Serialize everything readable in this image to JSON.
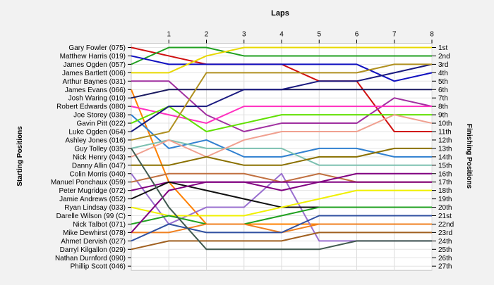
{
  "chart_data": {
    "type": "line",
    "title": "Laps",
    "ylabel_left": "Starting Positions",
    "ylabel_right": "Finishing Positions",
    "x": [
      0,
      1,
      2,
      3,
      4,
      5,
      6,
      7,
      8
    ],
    "x_tick_labels": [
      "1",
      "2",
      "3",
      "4",
      "5",
      "6",
      "7",
      "8"
    ],
    "y_range": [
      1,
      27
    ],
    "grid": true,
    "starting_labels": [
      "Gary Fowler (075)",
      "Matthew Harris (019)",
      "James Ogden (057)",
      "James Bartlett (006)",
      "Arthur Baynes (031)",
      "James Evans (066)",
      "Josh Waring (010)",
      "Robert Edwards (080)",
      "Joe Storey (038)",
      "Gavin Pitt (022)",
      "Luke Ogden (064)",
      "Ashley Jones (016)",
      "Guy Tolley (035)",
      "Nick Henry (043)",
      "Danny Allin (047)",
      "Colin Morris (040)",
      "Manuel Ponchaux (059)",
      "Peter Mugridge (072)",
      "Jamie Andrews (052)",
      "Ryan Lindsay (033)",
      "Darelle Wilson (99 (C)",
      "Nick Talbot (071)",
      "Mike Dewhirst (078)",
      "Ahmet Dervish (027)",
      "Darryl Kilgallon (029)",
      "Nathan Durnford (090)",
      "Phillip Scott (046)"
    ],
    "finishing_labels": [
      "1st",
      "2nd",
      "3rd",
      "4th",
      "5th",
      "6th",
      "7th",
      "8th",
      "9th",
      "10th",
      "11th",
      "12th",
      "13th",
      "14th",
      "15th",
      "16th",
      "17th",
      "18th",
      "19th",
      "20th",
      "21st",
      "22nd",
      "23rd",
      "24th",
      "25th",
      "26th",
      "27th"
    ],
    "series": [
      {
        "values": [
          1,
          2,
          3,
          3,
          3,
          5,
          5,
          11,
          11
        ],
        "color": "#d01010"
      },
      {
        "values": [
          3,
          1,
          1,
          2,
          2,
          2,
          2,
          2,
          2
        ],
        "color": "#20a020"
      },
      {
        "values": [
          2,
          3,
          3,
          3,
          3,
          3,
          3,
          5,
          4
        ],
        "color": "#1010c0"
      },
      {
        "values": [
          4,
          4,
          2,
          1,
          1,
          1,
          1,
          1,
          1
        ],
        "color": "#e8d800"
      },
      {
        "values": [
          5,
          5,
          9,
          11,
          10,
          10,
          10,
          7,
          8
        ],
        "color": "#a030a0"
      },
      {
        "values": [
          6,
          17,
          22,
          22,
          22,
          22,
          22,
          22,
          22
        ],
        "color": "#ff8000"
      },
      {
        "values": [
          7,
          6,
          6,
          6,
          6,
          6,
          6,
          6,
          6
        ],
        "color": "#1a1a60"
      },
      {
        "values": [
          8,
          9,
          10,
          8,
          8,
          8,
          8,
          8,
          8
        ],
        "color": "#ff30c0"
      },
      {
        "values": [
          9,
          13,
          12,
          14,
          14,
          13,
          13,
          14,
          14
        ],
        "color": "#3080d0"
      },
      {
        "values": [
          10,
          8,
          11,
          10,
          9,
          9,
          9,
          9,
          9
        ],
        "color": "#60e000"
      },
      {
        "values": [
          11,
          8,
          8,
          6,
          6,
          5,
          5,
          4,
          3
        ],
        "color": "#1a1a80"
      },
      {
        "values": [
          12,
          11,
          4,
          4,
          4,
          4,
          4,
          3,
          3
        ],
        "color": "#b09020"
      },
      {
        "values": [
          13,
          12,
          13,
          13,
          13,
          15,
          15,
          15,
          15
        ],
        "color": "#7cc0b0"
      },
      {
        "values": [
          14,
          12,
          14,
          12,
          11,
          11,
          11,
          9,
          10
        ],
        "color": "#f0a090"
      },
      {
        "values": [
          15,
          15,
          14,
          15,
          15,
          14,
          14,
          13,
          13
        ],
        "color": "#8a7000"
      },
      {
        "values": [
          16,
          22,
          20,
          20,
          16,
          24,
          24,
          24,
          24
        ],
        "color": "#9a70d0"
      },
      {
        "values": [
          17,
          16,
          16,
          16,
          17,
          16,
          17,
          17,
          17
        ],
        "color": "#c07040"
      },
      {
        "values": [
          18,
          17,
          17,
          17,
          18,
          17,
          16,
          16,
          16
        ],
        "color": "#800080"
      },
      {
        "values": [
          19,
          17,
          18,
          19,
          20,
          20,
          20,
          20,
          20
        ],
        "color": "#101010"
      },
      {
        "values": [
          20,
          21,
          21,
          21,
          20,
          19,
          18,
          18,
          18
        ],
        "color": "#f0f000"
      },
      {
        "values": [
          22,
          21,
          22,
          22,
          21,
          20,
          20,
          20,
          20
        ],
        "color": "#20a020"
      },
      {
        "values": [
          23,
          23,
          22,
          22,
          23,
          22,
          22,
          22,
          22
        ],
        "color": "#f08020"
      },
      {
        "values": [
          23,
          18,
          17,
          17,
          17,
          17,
          17,
          17,
          17
        ],
        "color": "#800080"
      },
      {
        "values": [
          24,
          22,
          23,
          23,
          23,
          21,
          21,
          21,
          21
        ],
        "color": "#3050a0"
      },
      {
        "values": [
          25,
          24,
          24,
          24,
          24,
          23,
          23,
          23,
          23
        ],
        "color": "#a06020"
      },
      {
        "values": [
          13,
          20,
          25,
          25,
          25,
          25,
          24,
          24,
          24
        ],
        "color": "#405a50"
      }
    ]
  }
}
